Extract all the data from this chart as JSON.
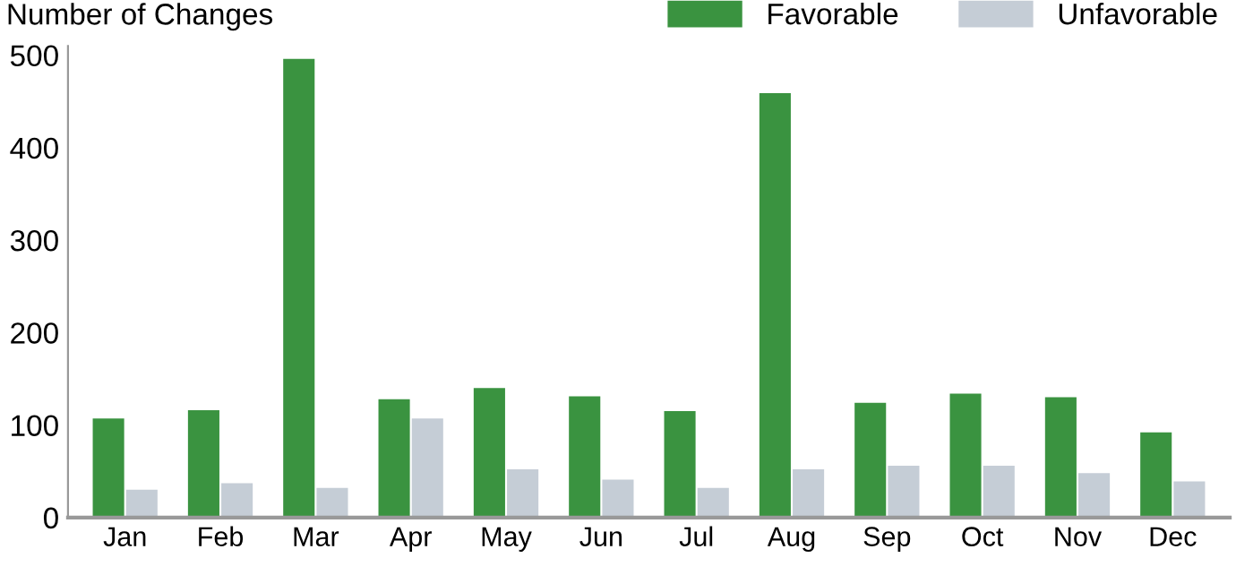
{
  "chart_data": {
    "type": "bar",
    "ylabel": "Number of Changes",
    "categories": [
      "Jan",
      "Feb",
      "Mar",
      "Apr",
      "May",
      "Jun",
      "Jul",
      "Aug",
      "Sep",
      "Oct",
      "Nov",
      "Dec"
    ],
    "series": [
      {
        "name": "Favorable",
        "color": "#3a9340",
        "values": [
          107,
          116,
          496,
          128,
          140,
          131,
          115,
          459,
          124,
          134,
          130,
          92
        ]
      },
      {
        "name": "Unfavorable",
        "color": "#c5cdd6",
        "values": [
          30,
          37,
          32,
          107,
          52,
          41,
          32,
          52,
          56,
          56,
          48,
          39
        ]
      }
    ],
    "ylim": [
      0,
      510
    ],
    "yticks": [
      0,
      100,
      200,
      300,
      400,
      500
    ],
    "grid": false,
    "legend": "top right"
  }
}
